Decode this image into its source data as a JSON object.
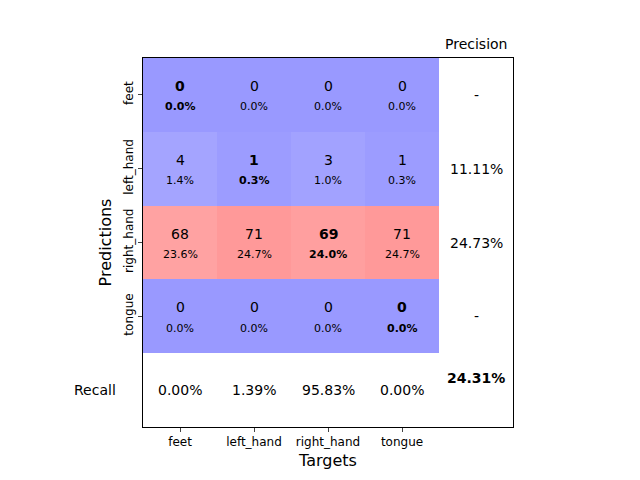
{
  "chart_data": {
    "type": "heatmap",
    "x_label": "Targets",
    "y_label": "Predictions",
    "x_categories": [
      "feet",
      "left_hand",
      "right_hand",
      "tongue"
    ],
    "y_categories": [
      "feet",
      "left_hand",
      "right_hand",
      "tongue"
    ],
    "cells": [
      [
        0,
        0,
        0,
        0
      ],
      [
        4,
        1,
        3,
        1
      ],
      [
        68,
        71,
        69,
        71
      ],
      [
        0,
        0,
        0,
        0
      ]
    ],
    "cell_labels": [
      [
        "0.0%",
        "0.0%",
        "0.0%",
        "0.0%"
      ],
      [
        "1.4%",
        "0.3%",
        "1.0%",
        "0.3%"
      ],
      [
        "23.6%",
        "24.7%",
        "24.0%",
        "24.7%"
      ],
      [
        "0.0%",
        "0.0%",
        "0.0%",
        "0.0%"
      ]
    ],
    "precision_label": "Precision",
    "precision": [
      "-",
      "11.11%",
      "24.73%",
      "-"
    ],
    "recall_label": "Recall",
    "recall": [
      "0.00%",
      "1.39%",
      "95.83%",
      "0.00%"
    ],
    "accuracy": "24.31%"
  }
}
